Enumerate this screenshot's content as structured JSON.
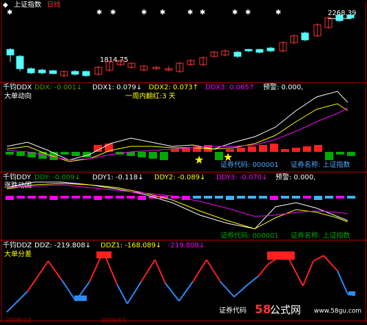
{
  "header": {
    "index_name": "上证指数",
    "period": "日线",
    "price_high": "2268.39",
    "price_low": "1814.75"
  },
  "ddx_pane": {
    "indicator": "千钧DDX",
    "ddx": "DDX: -0.001↓",
    "ddx1": "DDX1: 0.079↓",
    "ddx2": "DDX2: 0.073↑",
    "ddx3": "DDX3: 0.065↑",
    "warn": "预警: 0.000,",
    "subtitle": "大单动向",
    "week_red": "一周内翻红:3 天",
    "code_label": "证券代码: 000001",
    "name_label": "证券名称: 上证指数"
  },
  "ddy_pane": {
    "indicator": "千钧DDY",
    "ddy": "DDY: -0.009↓",
    "ddy1": "DDY1: -0.118↓",
    "ddy2": "DDY2: -0.089↓",
    "ddy3": "DDY3: -0.070↓",
    "warn": "预警: 0.000,",
    "subtitle": "涨跌动因",
    "code_label": "证券代码: 000001",
    "name_label": "证券名称: 上证指数"
  },
  "ddz_pane": {
    "indicator": "千钧DDZ",
    "ddz": "DDZ: -219.808↓",
    "ddz1": "DDZ1: -168.089↓",
    "ddz2": "-219.808↓",
    "subtitle": "大单分差",
    "code_label": "证券代码",
    "watermark_num": "58",
    "watermark_text": "公式网",
    "watermark_url": "www.58gu.com",
    "date_left": "2008/12",
    "date_mid": "2009/01"
  },
  "colors": {
    "up": "#ff3232",
    "down": "#54fcfc",
    "yellow": "#ffff00",
    "magenta": "#ff00ff",
    "green": "#00a800",
    "blue": "#5599ff",
    "border": "#b00000"
  }
}
